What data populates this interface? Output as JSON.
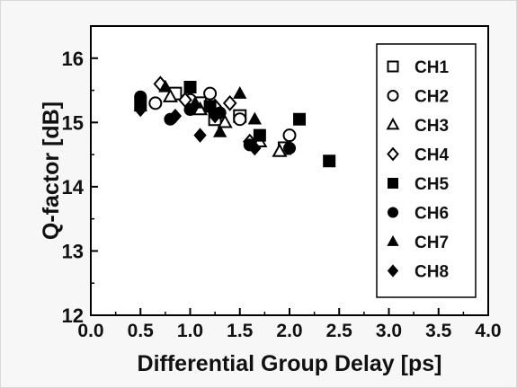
{
  "chart_data": {
    "type": "scatter",
    "title": "",
    "xlabel": "Differential Group Delay [ps]",
    "ylabel": "Q-factor [dB]",
    "xlim": [
      0.0,
      4.0
    ],
    "ylim": [
      12,
      16.5
    ],
    "x_ticks": [
      "0.0",
      "0.5",
      "1.0",
      "1.5",
      "2.0",
      "2.5",
      "3.0",
      "3.5",
      "4.0"
    ],
    "y_ticks": [
      "12",
      "13",
      "14",
      "15",
      "16"
    ],
    "grid": false,
    "legend_position": "right",
    "series": [
      {
        "name": "CH1",
        "marker": "square-open",
        "color": "#000000",
        "points": [
          [
            0.85,
            15.45
          ],
          [
            1.1,
            15.3
          ],
          [
            1.25,
            15.05
          ],
          [
            1.5,
            15.1
          ],
          [
            1.95,
            14.6
          ]
        ]
      },
      {
        "name": "CH2",
        "marker": "circle-open",
        "color": "#000000",
        "points": [
          [
            0.65,
            15.3
          ],
          [
            1.0,
            15.35
          ],
          [
            1.2,
            15.45
          ],
          [
            1.5,
            15.05
          ],
          [
            2.0,
            14.8
          ]
        ]
      },
      {
        "name": "CH3",
        "marker": "triangle-open",
        "color": "#000000",
        "points": [
          [
            0.8,
            15.4
          ],
          [
            1.1,
            15.2
          ],
          [
            1.35,
            15.0
          ],
          [
            1.7,
            14.7
          ],
          [
            1.9,
            14.55
          ]
        ]
      },
      {
        "name": "CH4",
        "marker": "diamond-open",
        "color": "#000000",
        "points": [
          [
            0.7,
            15.6
          ],
          [
            0.95,
            15.35
          ],
          [
            1.25,
            15.25
          ],
          [
            1.4,
            15.3
          ],
          [
            1.6,
            14.7
          ]
        ]
      },
      {
        "name": "CH5",
        "marker": "square-filled",
        "color": "#000000",
        "points": [
          [
            0.5,
            15.3
          ],
          [
            1.0,
            15.55
          ],
          [
            1.2,
            15.25
          ],
          [
            1.7,
            14.8
          ],
          [
            2.1,
            15.05
          ],
          [
            2.4,
            14.4
          ]
        ]
      },
      {
        "name": "CH6",
        "marker": "circle-filled",
        "color": "#000000",
        "points": [
          [
            0.5,
            15.4
          ],
          [
            0.8,
            15.05
          ],
          [
            1.0,
            15.2
          ],
          [
            1.3,
            15.15
          ],
          [
            1.6,
            14.65
          ],
          [
            2.0,
            14.6
          ]
        ]
      },
      {
        "name": "CH7",
        "marker": "triangle-filled",
        "color": "#000000",
        "points": [
          [
            0.5,
            15.25
          ],
          [
            0.75,
            15.55
          ],
          [
            1.05,
            15.3
          ],
          [
            1.3,
            14.85
          ],
          [
            1.5,
            15.45
          ],
          [
            1.65,
            15.05
          ]
        ]
      },
      {
        "name": "CH8",
        "marker": "diamond-filled",
        "color": "#000000",
        "points": [
          [
            0.5,
            15.2
          ],
          [
            0.85,
            15.1
          ],
          [
            1.1,
            14.8
          ],
          [
            1.25,
            15.1
          ],
          [
            1.65,
            14.6
          ]
        ]
      }
    ]
  }
}
